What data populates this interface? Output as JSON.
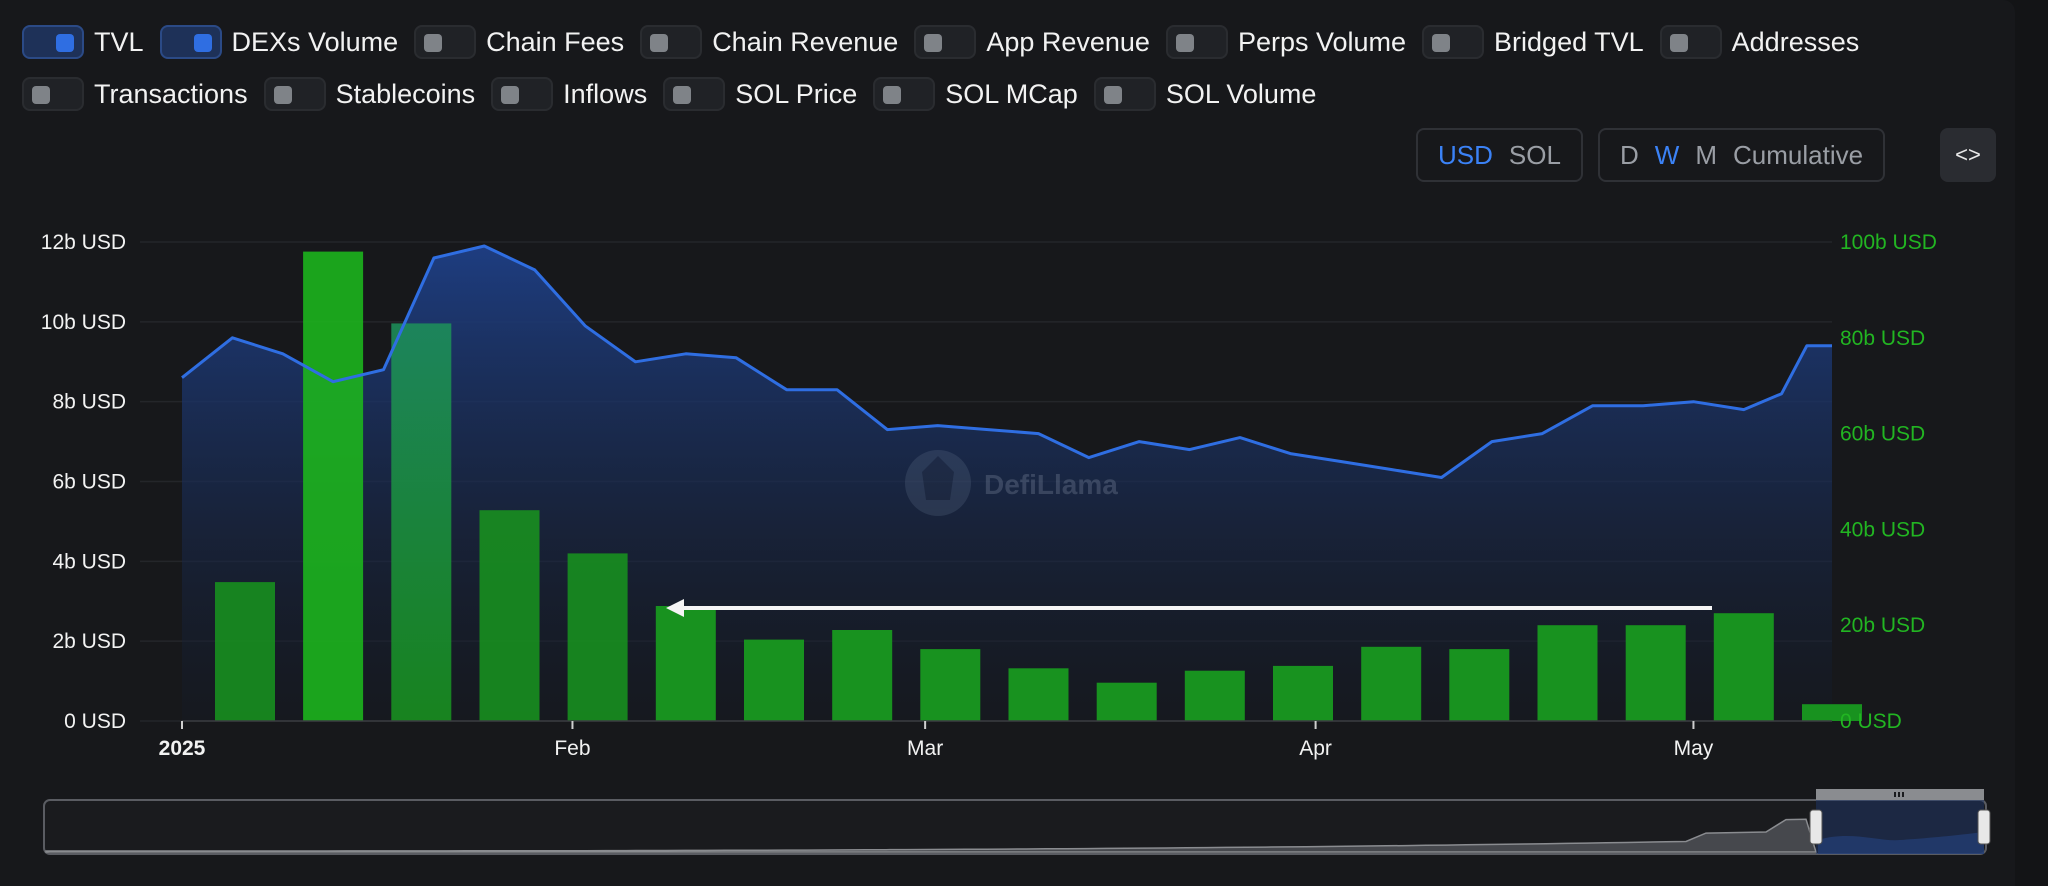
{
  "toggles": {
    "row1": [
      {
        "label": "TVL",
        "on": true
      },
      {
        "label": "DEXs Volume",
        "on": true
      },
      {
        "label": "Chain Fees",
        "on": false
      },
      {
        "label": "Chain Revenue",
        "on": false
      },
      {
        "label": "App Revenue",
        "on": false
      },
      {
        "label": "Perps Volume",
        "on": false
      },
      {
        "label": "Bridged TVL",
        "on": false
      },
      {
        "label": "Addresses",
        "on": false
      }
    ],
    "row2": [
      {
        "label": "Transactions",
        "on": false
      },
      {
        "label": "Stablecoins",
        "on": false
      },
      {
        "label": "Inflows",
        "on": false
      },
      {
        "label": "SOL Price",
        "on": false
      },
      {
        "label": "SOL MCap",
        "on": false
      },
      {
        "label": "SOL Volume",
        "on": false
      }
    ]
  },
  "currency": {
    "options": [
      "USD",
      "SOL"
    ],
    "selected": "USD"
  },
  "period": {
    "options": [
      "D",
      "W",
      "M",
      "Cumulative"
    ],
    "selected": "W"
  },
  "embed_label": "<>",
  "watermark": "DefiLlama",
  "colors": {
    "tvl_line": "#2f6ee2",
    "dex_bar": "#18921f",
    "dex_bar_highlight": "#1db71d",
    "right_axis": "#22b522",
    "accent": "#3b82f6"
  },
  "chart_data": {
    "type": "bar+line",
    "x_ticks": [
      {
        "label": "2025",
        "date": "2025-01-01"
      },
      {
        "label": "Feb",
        "date": "2025-02-01"
      },
      {
        "label": "Mar",
        "date": "2025-03-01"
      },
      {
        "label": "Apr",
        "date": "2025-04-01"
      },
      {
        "label": "May",
        "date": "2025-05-01"
      }
    ],
    "y_left": {
      "ticks": [
        "0 USD",
        "2b USD",
        "4b USD",
        "6b USD",
        "8b USD",
        "10b USD",
        "12b USD"
      ],
      "range": [
        0,
        12
      ]
    },
    "y_right": {
      "ticks": [
        "0 USD",
        "20b USD",
        "40b USD",
        "60b USD",
        "80b USD",
        "100b USD"
      ],
      "range": [
        0,
        100
      ]
    },
    "series": [
      {
        "name": "TVL",
        "axis": "left",
        "type": "area",
        "dates": [
          "2025-01-01",
          "2025-01-05",
          "2025-01-09",
          "2025-01-13",
          "2025-01-17",
          "2025-01-21",
          "2025-01-25",
          "2025-01-29",
          "2025-02-02",
          "2025-02-06",
          "2025-02-10",
          "2025-02-14",
          "2025-02-18",
          "2025-02-22",
          "2025-02-26",
          "2025-03-02",
          "2025-03-06",
          "2025-03-10",
          "2025-03-14",
          "2025-03-18",
          "2025-03-22",
          "2025-03-26",
          "2025-03-30",
          "2025-04-03",
          "2025-04-07",
          "2025-04-11",
          "2025-04-15",
          "2025-04-19",
          "2025-04-23",
          "2025-04-27",
          "2025-05-01",
          "2025-05-05",
          "2025-05-08",
          "2025-05-10",
          "2025-05-12"
        ],
        "values": [
          8.6,
          9.6,
          9.2,
          8.5,
          8.8,
          11.6,
          11.9,
          11.3,
          9.9,
          9.0,
          9.2,
          9.1,
          8.3,
          8.3,
          7.3,
          7.4,
          7.3,
          7.2,
          6.6,
          7.0,
          6.8,
          7.1,
          6.7,
          6.5,
          6.3,
          6.1,
          7.0,
          7.2,
          7.9,
          7.9,
          8.0,
          7.8,
          8.2,
          9.4,
          9.4
        ]
      },
      {
        "name": "DEXs Volume",
        "axis": "right",
        "type": "bar",
        "dates": [
          "2025-01-06",
          "2025-01-13",
          "2025-01-20",
          "2025-01-27",
          "2025-02-03",
          "2025-02-10",
          "2025-02-17",
          "2025-02-24",
          "2025-03-03",
          "2025-03-10",
          "2025-03-17",
          "2025-03-24",
          "2025-03-31",
          "2025-04-07",
          "2025-04-14",
          "2025-04-21",
          "2025-04-28",
          "2025-05-05",
          "2025-05-12"
        ],
        "values": [
          29,
          98,
          83,
          44,
          35,
          24,
          17,
          19,
          15,
          11,
          8,
          10.5,
          11.5,
          15.5,
          15,
          20,
          20,
          22.5,
          3.5
        ]
      }
    ],
    "legend": "none"
  }
}
